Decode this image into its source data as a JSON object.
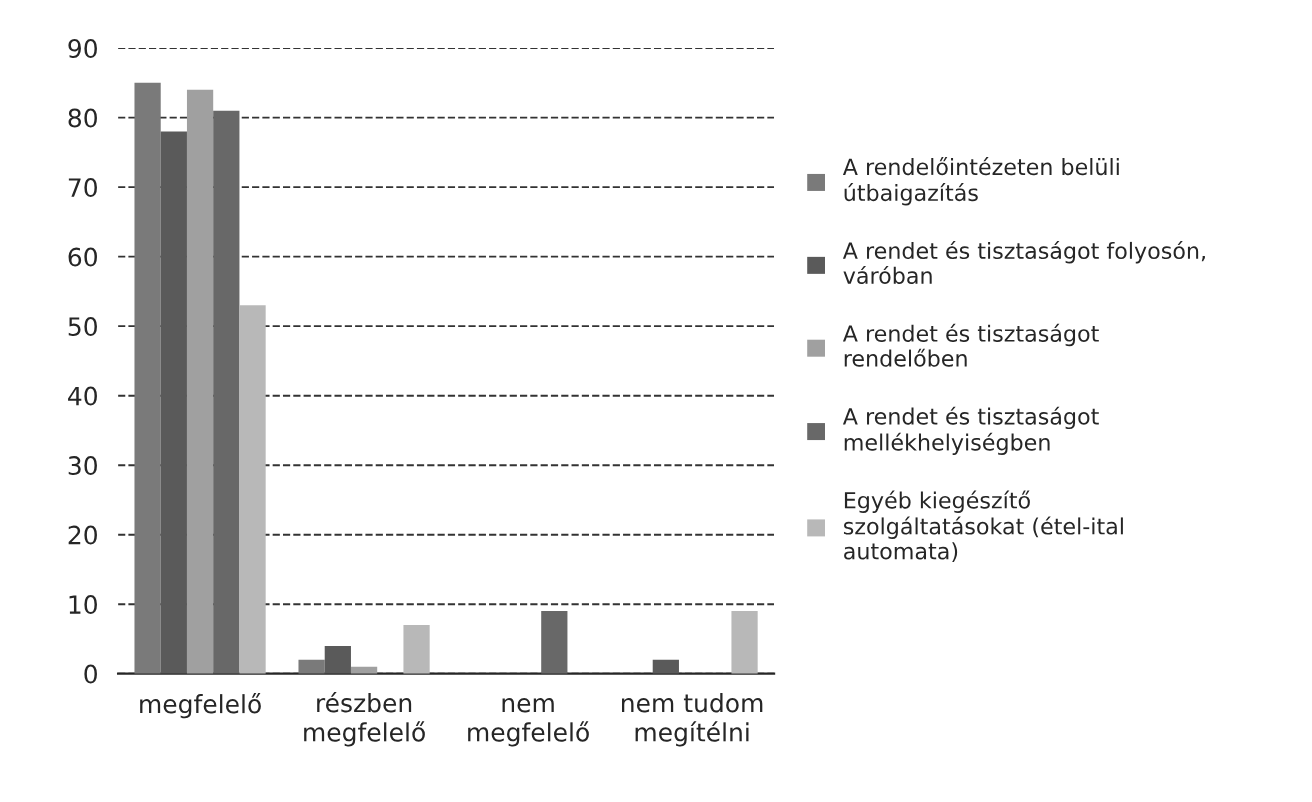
{
  "chart_data": {
    "type": "bar",
    "categories": [
      "megfelelő",
      "részben\nmegfelelő",
      "nem\nmegfelelő",
      "nem tudom\nmegítélni"
    ],
    "series": [
      {
        "name": "A rendelőintézeten belüli\nútbaigazítás",
        "color": "#7a7a7a",
        "values": [
          85,
          2,
          null,
          null
        ]
      },
      {
        "name": "A rendet és tisztaságot folyosón,\nváróban",
        "color": "#5a5a5a",
        "values": [
          78,
          4,
          null,
          2
        ]
      },
      {
        "name": "A rendet és tisztaságot\nrendelőben",
        "color": "#a0a0a0",
        "values": [
          84,
          1,
          null,
          null
        ]
      },
      {
        "name": "A rendet és tisztaságot\nmellékhelyiségben",
        "color": "#686868",
        "values": [
          81,
          null,
          9,
          null
        ]
      },
      {
        "name": "Egyéb kiegészítő\nszolgáltatásokat (étel-ital\nautomata)",
        "color": "#b8b8b8",
        "values": [
          53,
          7,
          null,
          9
        ]
      }
    ],
    "ylim": [
      0,
      90
    ],
    "yticks": [
      0,
      10,
      20,
      30,
      40,
      50,
      60,
      70,
      80,
      90
    ],
    "grid": "y",
    "legend": "right"
  }
}
